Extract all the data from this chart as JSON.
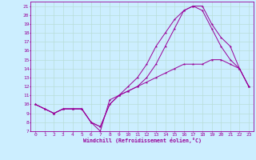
{
  "xlabel": "Windchill (Refroidissement éolien,°C)",
  "bg_color": "#cceeff",
  "grid_color": "#b8ddd8",
  "line_color": "#990099",
  "xlim": [
    -0.5,
    23.5
  ],
  "ylim": [
    7,
    21.5
  ],
  "xticks": [
    0,
    1,
    2,
    3,
    4,
    5,
    6,
    7,
    8,
    9,
    10,
    11,
    12,
    13,
    14,
    15,
    16,
    17,
    18,
    19,
    20,
    21,
    22,
    23
  ],
  "yticks": [
    7,
    8,
    9,
    10,
    11,
    12,
    13,
    14,
    15,
    16,
    17,
    18,
    19,
    20,
    21
  ],
  "series": [
    {
      "x": [
        0,
        1,
        2,
        3,
        4,
        5,
        6,
        7,
        8,
        9,
        10,
        11,
        12,
        13,
        14,
        15,
        16,
        17,
        18,
        19,
        20,
        21,
        22,
        23
      ],
      "y": [
        10,
        9.5,
        9.0,
        9.5,
        9.5,
        9.5,
        8.0,
        7.0,
        10.5,
        11.0,
        11.5,
        12.0,
        12.5,
        13.0,
        13.5,
        14.0,
        14.5,
        14.5,
        14.5,
        15.0,
        15.0,
        14.5,
        14.0,
        12.0
      ]
    },
    {
      "x": [
        0,
        1,
        2,
        3,
        4,
        5,
        6,
        7,
        8,
        9,
        10,
        11,
        12,
        13,
        14,
        15,
        16,
        17,
        18,
        19,
        20,
        21,
        22,
        23
      ],
      "y": [
        10,
        9.5,
        9.0,
        9.5,
        9.5,
        9.5,
        8.0,
        7.5,
        10.0,
        11.0,
        12.0,
        13.0,
        14.5,
        16.5,
        18.0,
        19.5,
        20.5,
        21.0,
        21.0,
        19.0,
        17.5,
        16.5,
        14.0,
        12.0
      ]
    },
    {
      "x": [
        0,
        1,
        2,
        3,
        4,
        5,
        6,
        7,
        8,
        9,
        10,
        11,
        12,
        13,
        14,
        15,
        16,
        17,
        18,
        19,
        20,
        21,
        22,
        23
      ],
      "y": [
        10,
        9.5,
        9.0,
        9.5,
        9.5,
        9.5,
        8.0,
        7.5,
        10.0,
        11.0,
        11.5,
        12.0,
        13.0,
        14.5,
        16.5,
        18.5,
        20.5,
        21.0,
        20.5,
        18.5,
        16.5,
        15.0,
        14.0,
        12.0
      ]
    }
  ]
}
